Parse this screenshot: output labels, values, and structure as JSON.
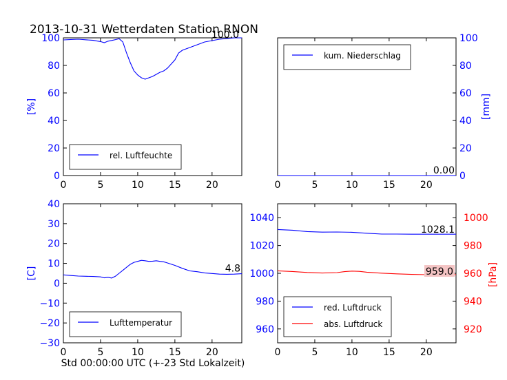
{
  "title": "2013-10-31 Wetterdaten Station RNON",
  "xlabel": "Std 00:00:00 UTC (+-23 Std Lokalzeit)",
  "colors": {
    "blue": "#0000ff",
    "red": "#ff0000",
    "black": "#000000"
  },
  "chart_data": [
    {
      "id": "humidity",
      "type": "line",
      "xlim": [
        0,
        24
      ],
      "ylim": [
        0,
        100
      ],
      "xticks": [
        0,
        5,
        10,
        15,
        20
      ],
      "yticks": [
        0,
        20,
        40,
        60,
        80,
        100
      ],
      "ylabel": "[%]",
      "grid": false,
      "legend_placement": "lower-left",
      "last_value_label": "100.0",
      "series": [
        {
          "name": "rel. Luftfeuchte",
          "color": "#0000ff",
          "points": [
            [
              0,
              98.5
            ],
            [
              1,
              98.8
            ],
            [
              2,
              99
            ],
            [
              3,
              98.6
            ],
            [
              4,
              98.2
            ],
            [
              5,
              97.3
            ],
            [
              5.5,
              96.5
            ],
            [
              6,
              97.6
            ],
            [
              6.5,
              98.1
            ],
            [
              7,
              98.7
            ],
            [
              7.5,
              99.4
            ],
            [
              8,
              97
            ],
            [
              8.5,
              89
            ],
            [
              9,
              82
            ],
            [
              9.5,
              76
            ],
            [
              10,
              73
            ],
            [
              10.5,
              71
            ],
            [
              11,
              70
            ],
            [
              11.5,
              71
            ],
            [
              12,
              72
            ],
            [
              12.5,
              73.5
            ],
            [
              13,
              75
            ],
            [
              13.5,
              76
            ],
            [
              14,
              78
            ],
            [
              14.5,
              81
            ],
            [
              15,
              84
            ],
            [
              15.5,
              89
            ],
            [
              16,
              91
            ],
            [
              17,
              93
            ],
            [
              18,
              95
            ],
            [
              19,
              97
            ],
            [
              20,
              98
            ],
            [
              21,
              99
            ],
            [
              22,
              99.5
            ],
            [
              23,
              100
            ],
            [
              24,
              100
            ]
          ]
        }
      ]
    },
    {
      "id": "precip",
      "type": "line",
      "xlim": [
        0,
        24
      ],
      "ylim": [
        0,
        100
      ],
      "xticks": [
        0,
        5,
        10,
        15,
        20
      ],
      "yticks": [
        0,
        20,
        40,
        60,
        80,
        100
      ],
      "ylabel": "[mm]",
      "grid": false,
      "legend_placement": "upper-left",
      "last_value_label": "0.00",
      "series": [
        {
          "name": "kum. Niederschlag",
          "color": "#0000ff",
          "points": [
            [
              0,
              0
            ],
            [
              24,
              0
            ]
          ]
        }
      ]
    },
    {
      "id": "temperature",
      "type": "line",
      "xlim": [
        0,
        24
      ],
      "ylim": [
        -30,
        40
      ],
      "xticks": [
        0,
        5,
        10,
        15,
        20
      ],
      "yticks": [
        -30,
        -20,
        -10,
        0,
        10,
        20,
        30,
        40
      ],
      "ylabel": "[C]",
      "grid": false,
      "legend_placement": "lower-left",
      "last_value_label": "4.8",
      "series": [
        {
          "name": "Lufttemperatur",
          "color": "#0000ff",
          "points": [
            [
              0,
              4.2
            ],
            [
              1,
              3.9
            ],
            [
              2,
              3.6
            ],
            [
              3,
              3.5
            ],
            [
              4,
              3.4
            ],
            [
              5,
              3.2
            ],
            [
              5.5,
              2.7
            ],
            [
              6,
              3
            ],
            [
              6.5,
              2.6
            ],
            [
              7,
              3.5
            ],
            [
              7.5,
              5
            ],
            [
              8,
              6.5
            ],
            [
              8.5,
              8
            ],
            [
              9,
              9.5
            ],
            [
              9.5,
              10.5
            ],
            [
              10,
              11
            ],
            [
              10.5,
              11.5
            ],
            [
              11,
              11.3
            ],
            [
              11.5,
              11
            ],
            [
              12,
              11.1
            ],
            [
              12.5,
              11.3
            ],
            [
              13,
              11
            ],
            [
              13.5,
              10.8
            ],
            [
              14,
              10.2
            ],
            [
              15,
              9
            ],
            [
              16,
              7.5
            ],
            [
              17,
              6.2
            ],
            [
              18,
              5.8
            ],
            [
              19,
              5.2
            ],
            [
              20,
              4.9
            ],
            [
              21,
              4.6
            ],
            [
              22,
              4.5
            ],
            [
              23,
              4.6
            ],
            [
              24,
              4.8
            ]
          ]
        }
      ]
    },
    {
      "id": "pressure",
      "type": "line",
      "xlim": [
        0,
        24
      ],
      "ylim": [
        950,
        1050
      ],
      "ylim_right": [
        910,
        1010
      ],
      "xticks": [
        0,
        5,
        10,
        15,
        20
      ],
      "yticks": [
        960,
        980,
        1000,
        1020,
        1040
      ],
      "yticks_right": [
        920,
        940,
        960,
        980,
        1000
      ],
      "ylabel_right": "[hPa]",
      "grid": false,
      "legend_placement": "lower-left",
      "last_value_label_left": "1028.1",
      "last_value_label_right": "959.0",
      "series": [
        {
          "name": "red. Luftdruck",
          "color": "#0000ff",
          "axis": "left",
          "points": [
            [
              0,
              1031.5
            ],
            [
              2,
              1031
            ],
            [
              4,
              1030
            ],
            [
              6,
              1029.6
            ],
            [
              8,
              1029.7
            ],
            [
              10,
              1029.5
            ],
            [
              12,
              1028.8
            ],
            [
              14,
              1028.2
            ],
            [
              16,
              1028.2
            ],
            [
              18,
              1028.1
            ],
            [
              20,
              1028.1
            ],
            [
              22,
              1028.1
            ],
            [
              24,
              1028.1
            ]
          ]
        },
        {
          "name": "abs. Luftdruck",
          "color": "#ff0000",
          "axis": "right",
          "points": [
            [
              0,
              961.8
            ],
            [
              2,
              961.3
            ],
            [
              4,
              960.6
            ],
            [
              6,
              960.2
            ],
            [
              8,
              960.5
            ],
            [
              9,
              961.2
            ],
            [
              10,
              961.6
            ],
            [
              11,
              961.4
            ],
            [
              12,
              960.8
            ],
            [
              14,
              960.1
            ],
            [
              16,
              959.6
            ],
            [
              18,
              959.2
            ],
            [
              20,
              959
            ],
            [
              22,
              959
            ],
            [
              24,
              959
            ]
          ]
        }
      ]
    }
  ]
}
